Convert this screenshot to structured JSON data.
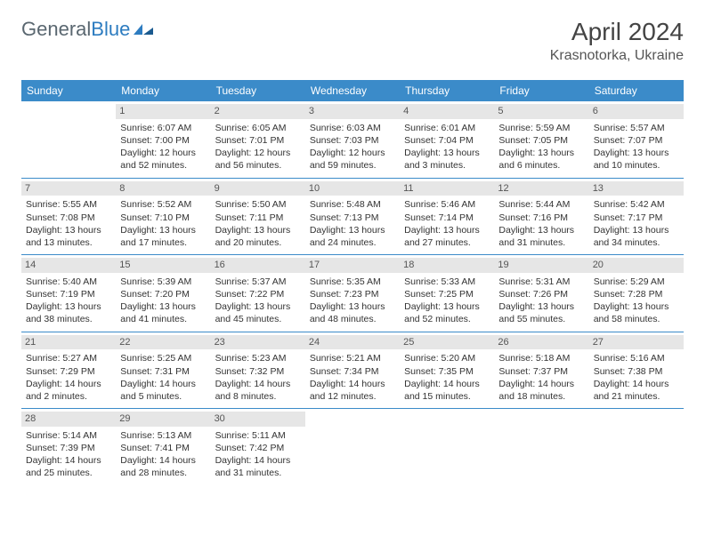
{
  "logo": {
    "general": "General",
    "blue": "Blue"
  },
  "title": "April 2024",
  "location": "Krasnotorka, Ukraine",
  "colors": {
    "header_bg": "#3b8bc9",
    "header_text": "#ffffff",
    "daynum_bg": "#e6e6e6",
    "border": "#3b8bc9",
    "logo_blue": "#2d7cc0",
    "logo_gray": "#5a6770"
  },
  "weekdays": [
    "Sunday",
    "Monday",
    "Tuesday",
    "Wednesday",
    "Thursday",
    "Friday",
    "Saturday"
  ],
  "weeks": [
    [
      {
        "n": "",
        "sr": "",
        "ss": "",
        "dl": ""
      },
      {
        "n": "1",
        "sr": "Sunrise: 6:07 AM",
        "ss": "Sunset: 7:00 PM",
        "dl": "Daylight: 12 hours and 52 minutes."
      },
      {
        "n": "2",
        "sr": "Sunrise: 6:05 AM",
        "ss": "Sunset: 7:01 PM",
        "dl": "Daylight: 12 hours and 56 minutes."
      },
      {
        "n": "3",
        "sr": "Sunrise: 6:03 AM",
        "ss": "Sunset: 7:03 PM",
        "dl": "Daylight: 12 hours and 59 minutes."
      },
      {
        "n": "4",
        "sr": "Sunrise: 6:01 AM",
        "ss": "Sunset: 7:04 PM",
        "dl": "Daylight: 13 hours and 3 minutes."
      },
      {
        "n": "5",
        "sr": "Sunrise: 5:59 AM",
        "ss": "Sunset: 7:05 PM",
        "dl": "Daylight: 13 hours and 6 minutes."
      },
      {
        "n": "6",
        "sr": "Sunrise: 5:57 AM",
        "ss": "Sunset: 7:07 PM",
        "dl": "Daylight: 13 hours and 10 minutes."
      }
    ],
    [
      {
        "n": "7",
        "sr": "Sunrise: 5:55 AM",
        "ss": "Sunset: 7:08 PM",
        "dl": "Daylight: 13 hours and 13 minutes."
      },
      {
        "n": "8",
        "sr": "Sunrise: 5:52 AM",
        "ss": "Sunset: 7:10 PM",
        "dl": "Daylight: 13 hours and 17 minutes."
      },
      {
        "n": "9",
        "sr": "Sunrise: 5:50 AM",
        "ss": "Sunset: 7:11 PM",
        "dl": "Daylight: 13 hours and 20 minutes."
      },
      {
        "n": "10",
        "sr": "Sunrise: 5:48 AM",
        "ss": "Sunset: 7:13 PM",
        "dl": "Daylight: 13 hours and 24 minutes."
      },
      {
        "n": "11",
        "sr": "Sunrise: 5:46 AM",
        "ss": "Sunset: 7:14 PM",
        "dl": "Daylight: 13 hours and 27 minutes."
      },
      {
        "n": "12",
        "sr": "Sunrise: 5:44 AM",
        "ss": "Sunset: 7:16 PM",
        "dl": "Daylight: 13 hours and 31 minutes."
      },
      {
        "n": "13",
        "sr": "Sunrise: 5:42 AM",
        "ss": "Sunset: 7:17 PM",
        "dl": "Daylight: 13 hours and 34 minutes."
      }
    ],
    [
      {
        "n": "14",
        "sr": "Sunrise: 5:40 AM",
        "ss": "Sunset: 7:19 PM",
        "dl": "Daylight: 13 hours and 38 minutes."
      },
      {
        "n": "15",
        "sr": "Sunrise: 5:39 AM",
        "ss": "Sunset: 7:20 PM",
        "dl": "Daylight: 13 hours and 41 minutes."
      },
      {
        "n": "16",
        "sr": "Sunrise: 5:37 AM",
        "ss": "Sunset: 7:22 PM",
        "dl": "Daylight: 13 hours and 45 minutes."
      },
      {
        "n": "17",
        "sr": "Sunrise: 5:35 AM",
        "ss": "Sunset: 7:23 PM",
        "dl": "Daylight: 13 hours and 48 minutes."
      },
      {
        "n": "18",
        "sr": "Sunrise: 5:33 AM",
        "ss": "Sunset: 7:25 PM",
        "dl": "Daylight: 13 hours and 52 minutes."
      },
      {
        "n": "19",
        "sr": "Sunrise: 5:31 AM",
        "ss": "Sunset: 7:26 PM",
        "dl": "Daylight: 13 hours and 55 minutes."
      },
      {
        "n": "20",
        "sr": "Sunrise: 5:29 AM",
        "ss": "Sunset: 7:28 PM",
        "dl": "Daylight: 13 hours and 58 minutes."
      }
    ],
    [
      {
        "n": "21",
        "sr": "Sunrise: 5:27 AM",
        "ss": "Sunset: 7:29 PM",
        "dl": "Daylight: 14 hours and 2 minutes."
      },
      {
        "n": "22",
        "sr": "Sunrise: 5:25 AM",
        "ss": "Sunset: 7:31 PM",
        "dl": "Daylight: 14 hours and 5 minutes."
      },
      {
        "n": "23",
        "sr": "Sunrise: 5:23 AM",
        "ss": "Sunset: 7:32 PM",
        "dl": "Daylight: 14 hours and 8 minutes."
      },
      {
        "n": "24",
        "sr": "Sunrise: 5:21 AM",
        "ss": "Sunset: 7:34 PM",
        "dl": "Daylight: 14 hours and 12 minutes."
      },
      {
        "n": "25",
        "sr": "Sunrise: 5:20 AM",
        "ss": "Sunset: 7:35 PM",
        "dl": "Daylight: 14 hours and 15 minutes."
      },
      {
        "n": "26",
        "sr": "Sunrise: 5:18 AM",
        "ss": "Sunset: 7:37 PM",
        "dl": "Daylight: 14 hours and 18 minutes."
      },
      {
        "n": "27",
        "sr": "Sunrise: 5:16 AM",
        "ss": "Sunset: 7:38 PM",
        "dl": "Daylight: 14 hours and 21 minutes."
      }
    ],
    [
      {
        "n": "28",
        "sr": "Sunrise: 5:14 AM",
        "ss": "Sunset: 7:39 PM",
        "dl": "Daylight: 14 hours and 25 minutes."
      },
      {
        "n": "29",
        "sr": "Sunrise: 5:13 AM",
        "ss": "Sunset: 7:41 PM",
        "dl": "Daylight: 14 hours and 28 minutes."
      },
      {
        "n": "30",
        "sr": "Sunrise: 5:11 AM",
        "ss": "Sunset: 7:42 PM",
        "dl": "Daylight: 14 hours and 31 minutes."
      },
      {
        "n": "",
        "sr": "",
        "ss": "",
        "dl": ""
      },
      {
        "n": "",
        "sr": "",
        "ss": "",
        "dl": ""
      },
      {
        "n": "",
        "sr": "",
        "ss": "",
        "dl": ""
      },
      {
        "n": "",
        "sr": "",
        "ss": "",
        "dl": ""
      }
    ]
  ]
}
